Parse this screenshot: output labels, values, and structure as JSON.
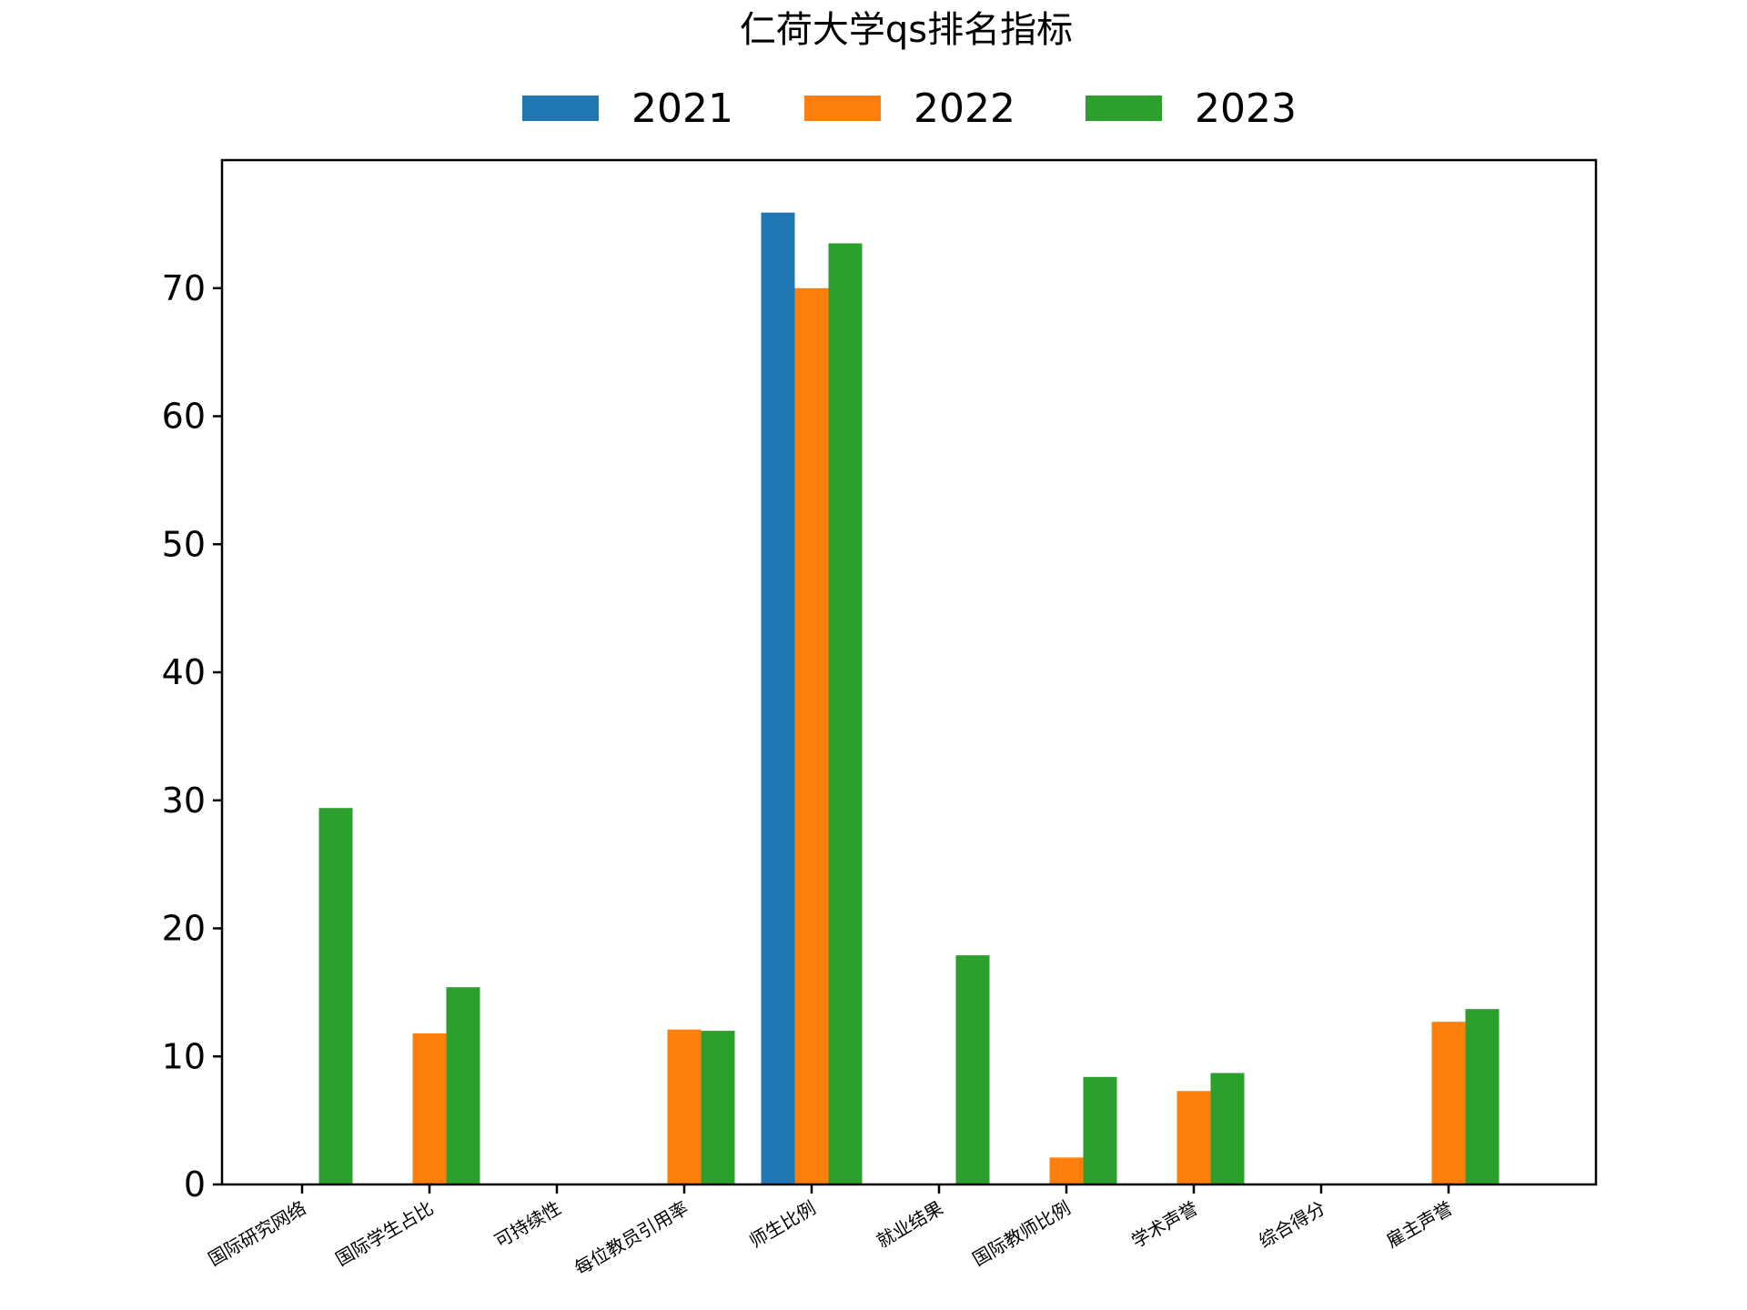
{
  "chart_data": {
    "type": "bar",
    "title": "仁荷大学qs排名指标",
    "xlabel": "",
    "ylabel": "",
    "ylim": [
      0,
      80
    ],
    "yticks": [
      0,
      10,
      20,
      30,
      40,
      50,
      60,
      70
    ],
    "grid": false,
    "legend_position": "top-center",
    "categories": [
      "国际研究网络",
      "国际学生占比",
      "可持续性",
      "每位教员引用率",
      "师生比例",
      "就业结果",
      "国际教师比例",
      "学术声誉",
      "综合得分",
      "雇主声誉"
    ],
    "series": [
      {
        "name": "2021",
        "color": "#1f77b4",
        "values": [
          0,
          0,
          0,
          0,
          75.9,
          0,
          0,
          0,
          0,
          0
        ]
      },
      {
        "name": "2022",
        "color": "#ff7f0e",
        "values": [
          0,
          11.8,
          0,
          12.1,
          70.0,
          0,
          2.1,
          7.3,
          0,
          12.7
        ]
      },
      {
        "name": "2023",
        "color": "#2ca02c",
        "values": [
          29.4,
          15.4,
          0,
          12.0,
          73.5,
          17.9,
          8.4,
          8.7,
          0,
          13.7
        ]
      }
    ]
  }
}
